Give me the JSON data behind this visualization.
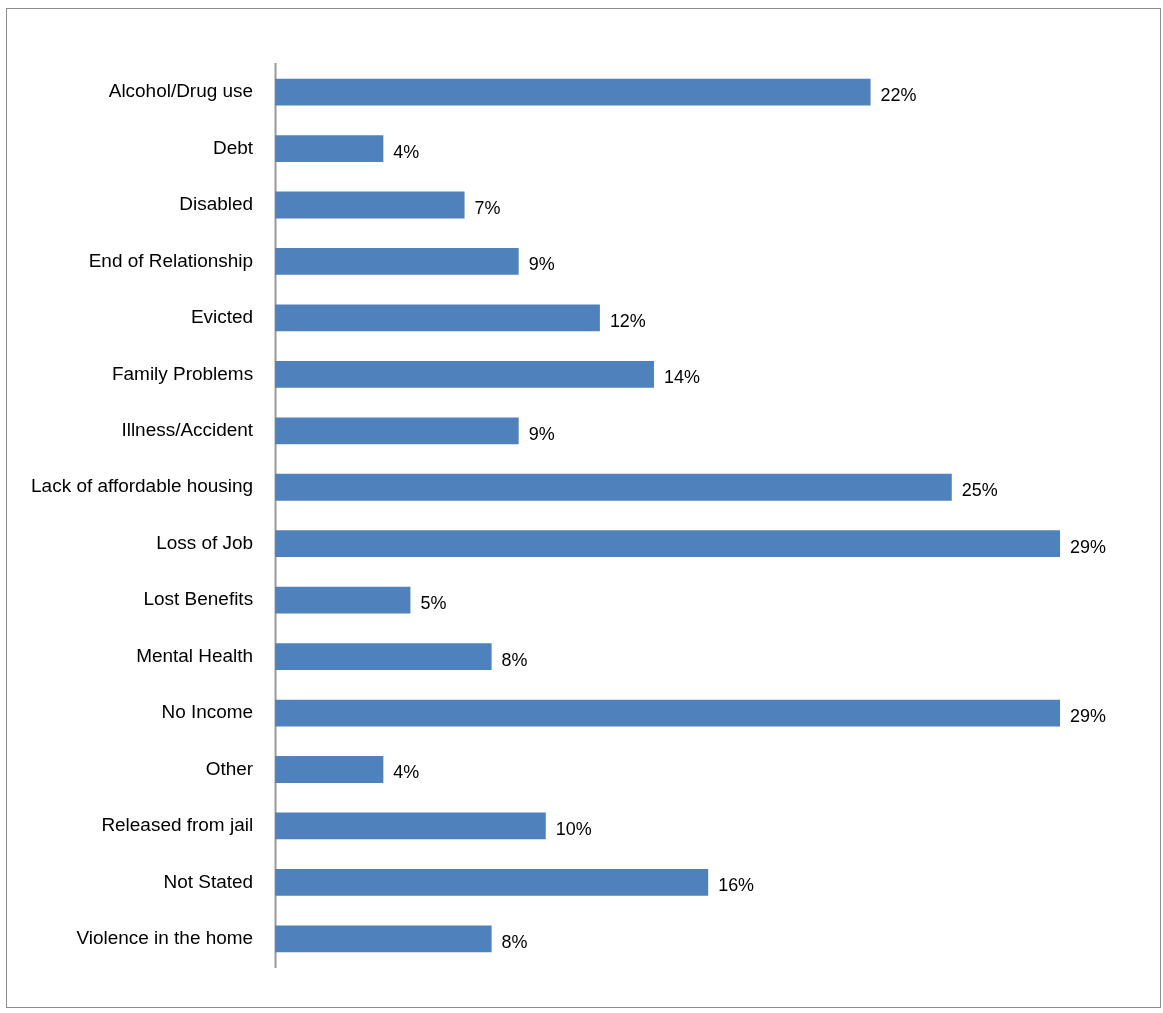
{
  "chart_data": {
    "type": "bar",
    "orientation": "horizontal",
    "categories": [
      "Alcohol/Drug use",
      "Debt",
      "Disabled",
      "End of Relationship",
      "Evicted",
      "Family Problems",
      "Illness/Accident",
      "Lack of affordable housing",
      "Loss of Job",
      "Lost Benefits",
      "Mental Health",
      "No Income",
      "Other",
      "Released from jail",
      "Not Stated",
      "Violence in the home"
    ],
    "values": [
      22,
      4,
      7,
      9,
      12,
      14,
      9,
      25,
      29,
      5,
      8,
      29,
      4,
      10,
      16,
      8
    ],
    "value_labels": [
      "22%",
      "4%",
      "7%",
      "9%",
      "12%",
      "14%",
      "9%",
      "25%",
      "29%",
      "5%",
      "8%",
      "29%",
      "4%",
      "10%",
      "16%",
      "8%"
    ],
    "color": "#4f81bd",
    "tick_labels": "y"
  }
}
